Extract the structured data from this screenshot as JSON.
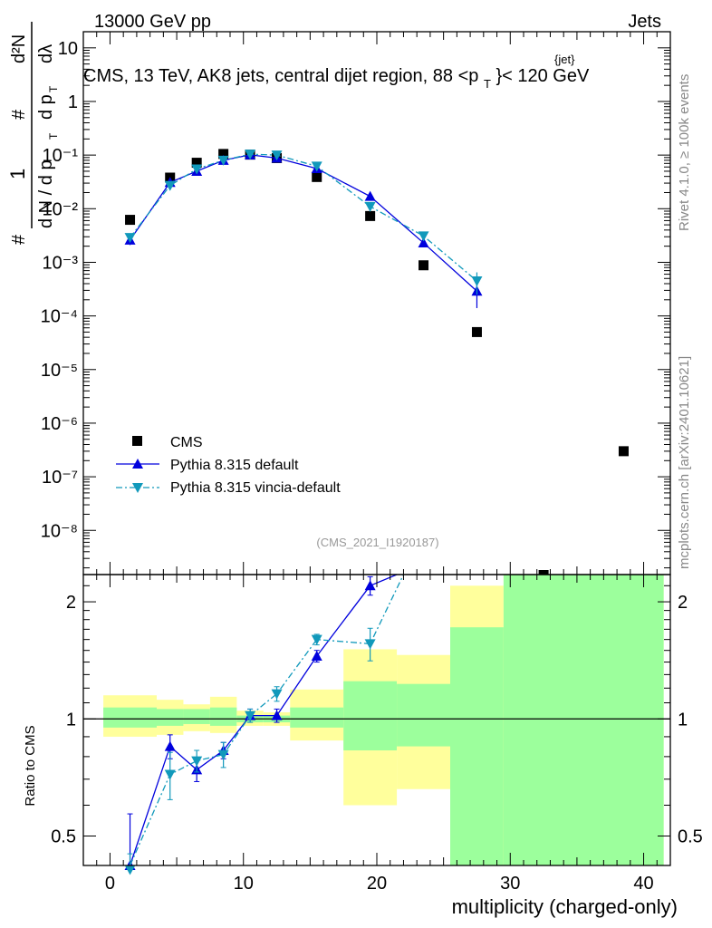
{
  "header": {
    "energy": "13000 GeV pp",
    "category": "Jets",
    "title": "CMS, 13 TeV, AK8 jets, central dijet region, 88 <p",
    "title_sup": "{jet}",
    "title_sub": "T",
    "title_end": "}< 120 GeV",
    "side_version": "Rivet 4.1.0, ≥ 100k events",
    "side_source": "mcplots.cern.ch [arXiv:2401.10621]",
    "analysis_id": "(CMS_2021_I1920187)"
  },
  "y_label_parts": [
    "#",
    "1",
    "d N / d p",
    "T",
    "#",
    "d p",
    "T",
    "dλ",
    "d²N"
  ],
  "ratio_ylabel": "Ratio to CMS",
  "x_axis_label": "multiplicity (charged-only)",
  "colors": {
    "cms": "#000000",
    "pythia_default": "#0000dd",
    "pythia_vincia": "#1199bb",
    "band_inner": "#9cff9c",
    "band_outer": "#ffff9c"
  },
  "legend": [
    {
      "label": "CMS"
    },
    {
      "label": "Pythia 8.315 default"
    },
    {
      "label": "Pythia 8.315 vincia-default"
    }
  ],
  "chart_data": {
    "type": "scatter",
    "xlabel": "multiplicity (charged-only)",
    "xlim": [
      -2,
      42
    ],
    "xticks": [
      "0",
      "10",
      "20",
      "30",
      "40"
    ],
    "main": {
      "yscale": "log",
      "ylim": [
        1.5e-09,
        20
      ],
      "yticks": [
        "10⁻⁸",
        "10⁻⁷",
        "10⁻⁶",
        "10⁻⁵",
        "10⁻⁴",
        "10⁻³",
        "10⁻²",
        "10⁻¹",
        "1",
        "10"
      ],
      "series": [
        {
          "name": "CMS",
          "marker": "square",
          "x": [
            1.5,
            4.5,
            6.5,
            8.5,
            10.5,
            12.5,
            15.5,
            19.5,
            23.5,
            27.5,
            32.5,
            38.5
          ],
          "y": [
            0.0062,
            0.038,
            0.072,
            0.105,
            0.102,
            0.088,
            0.039,
            0.0073,
            0.00088,
            5e-05,
            1.2e-09,
            3e-07
          ]
        },
        {
          "name": "Pythia 8.315 default",
          "marker": "triangle-up",
          "x": [
            1.5,
            4.5,
            6.5,
            8.5,
            10.5,
            12.5,
            15.5,
            19.5,
            23.5,
            27.5
          ],
          "y": [
            0.0026,
            0.031,
            0.05,
            0.08,
            0.101,
            0.088,
            0.056,
            0.017,
            0.0023,
            0.00029
          ],
          "yerr": [
            0.0005,
            0,
            0,
            0,
            0,
            0,
            0,
            0,
            0.0004,
            0.00015
          ]
        },
        {
          "name": "Pythia 8.315 vincia-default",
          "marker": "triangle-down",
          "x": [
            1.5,
            4.5,
            6.5,
            8.5,
            10.5,
            12.5,
            15.5,
            19.5,
            23.5,
            27.5
          ],
          "y": [
            0.0029,
            0.027,
            0.055,
            0.08,
            0.104,
            0.1,
            0.062,
            0.011,
            0.0031,
            0.00045
          ],
          "yerr": [
            0.0004,
            0,
            0,
            0,
            0,
            0,
            0,
            0,
            0.0004,
            0.0002
          ]
        }
      ]
    },
    "ratio": {
      "yscale": "log",
      "ylim": [
        0.42,
        2.35
      ],
      "yticks": [
        "0.5",
        "1",
        "2"
      ],
      "bands": [
        {
          "x0": -0.5,
          "x1": 3.5,
          "inner": [
            0.95,
            1.07
          ],
          "outer": [
            0.9,
            1.15
          ]
        },
        {
          "x0": 3.5,
          "x1": 5.5,
          "inner": [
            0.96,
            1.06
          ],
          "outer": [
            0.91,
            1.12
          ]
        },
        {
          "x0": 5.5,
          "x1": 7.5,
          "inner": [
            0.97,
            1.06
          ],
          "outer": [
            0.93,
            1.09
          ]
        },
        {
          "x0": 7.5,
          "x1": 9.5,
          "inner": [
            0.96,
            1.07
          ],
          "outer": [
            0.92,
            1.14
          ]
        },
        {
          "x0": 9.5,
          "x1": 11.5,
          "inner": [
            0.98,
            1.02
          ],
          "outer": [
            0.96,
            1.05
          ]
        },
        {
          "x0": 11.5,
          "x1": 13.5,
          "inner": [
            0.98,
            1.02
          ],
          "outer": [
            0.96,
            1.04
          ]
        },
        {
          "x0": 13.5,
          "x1": 17.5,
          "inner": [
            0.95,
            1.07
          ],
          "outer": [
            0.88,
            1.19
          ]
        },
        {
          "x0": 17.5,
          "x1": 21.5,
          "inner": [
            0.83,
            1.25
          ],
          "outer": [
            0.6,
            1.51
          ]
        },
        {
          "x0": 21.5,
          "x1": 25.5,
          "inner": [
            0.85,
            1.23
          ],
          "outer": [
            0.66,
            1.46
          ]
        },
        {
          "x0": 25.5,
          "x1": 29.5,
          "inner": [
            0.35,
            1.72
          ],
          "outer": [
            0.35,
            2.2
          ]
        },
        {
          "x0": 29.5,
          "x1": 41.5,
          "inner": [
            0.35,
            2.5
          ],
          "outer": [
            0.35,
            2.5
          ]
        }
      ],
      "series": [
        {
          "name": "Pythia 8.315 default",
          "x": [
            1.5,
            4.5,
            6.5,
            8.5,
            10.5,
            12.5,
            15.5,
            19.5,
            21.5
          ],
          "y": [
            0.42,
            0.85,
            0.74,
            0.83,
            1.02,
            1.02,
            1.45,
            2.2,
            2.42
          ],
          "yerr": [
            0.15,
            0.06,
            0.05,
            0.04,
            0.04,
            0.04,
            0.05,
            0.12,
            0
          ]
        },
        {
          "name": "Pythia 8.315 vincia-default",
          "x": [
            1.5,
            4.5,
            6.5,
            8.5,
            10.5,
            12.5,
            15.5,
            19.5,
            22.0
          ],
          "y": [
            0.41,
            0.72,
            0.78,
            0.81,
            1.02,
            1.16,
            1.6,
            1.56,
            2.42
          ],
          "yerr": [
            0.04,
            0.1,
            0.05,
            0.06,
            0.04,
            0.05,
            0.05,
            0.15,
            0
          ]
        }
      ]
    }
  }
}
